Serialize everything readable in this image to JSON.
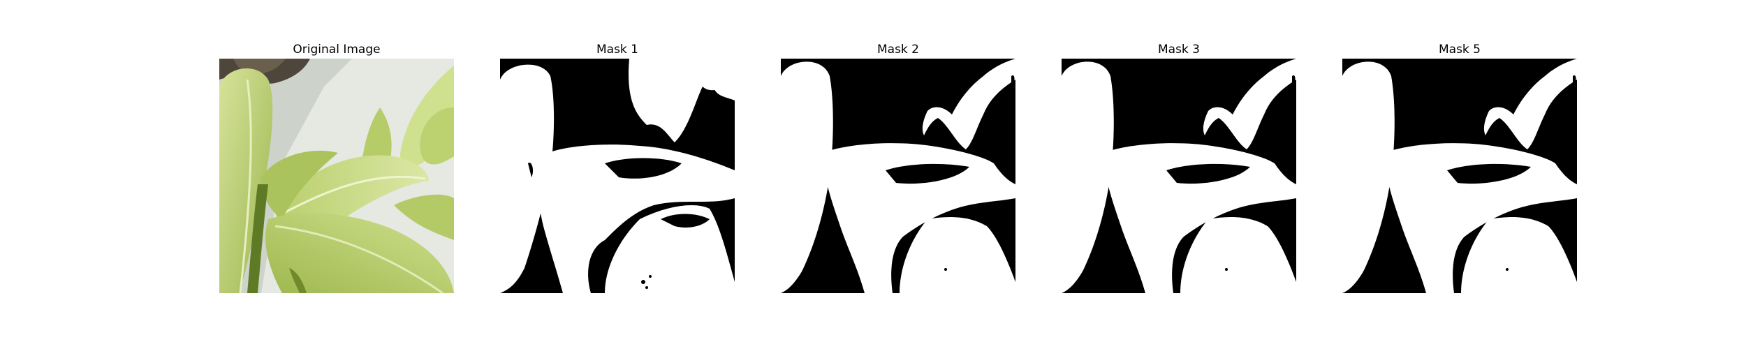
{
  "figure": {
    "panels": [
      {
        "title": "Original Image",
        "kind": "photo"
      },
      {
        "title": "Mask 1",
        "kind": "mask"
      },
      {
        "title": "Mask 2",
        "kind": "mask"
      },
      {
        "title": "Mask 3",
        "kind": "mask"
      },
      {
        "title": "Mask 5",
        "kind": "mask"
      }
    ]
  },
  "colors": {
    "mask_background": "#000000",
    "mask_foreground": "#ffffff",
    "leaf_light": "#c8d985",
    "leaf_mid": "#a9c25a",
    "leaf_dark": "#6f8a2a",
    "wall": "#e4e6e0",
    "shadow": "#5b5347"
  }
}
